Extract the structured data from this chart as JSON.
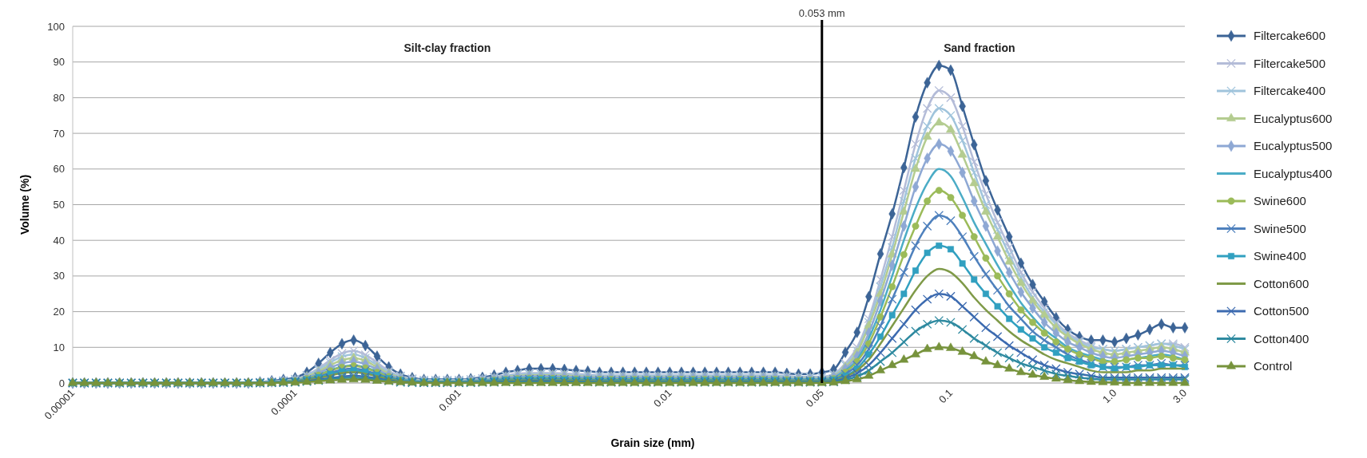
{
  "chart_data": {
    "type": "line",
    "xlabel": "Grain size (mm)",
    "ylabel": "Volume (%)",
    "categories": [
      "0.00001",
      null,
      null,
      null,
      null,
      null,
      null,
      null,
      null,
      null,
      null,
      null,
      null,
      null,
      null,
      null,
      null,
      null,
      null,
      "0.0001",
      null,
      null,
      null,
      null,
      null,
      null,
      null,
      null,
      null,
      null,
      null,
      null,
      null,
      "0.001",
      null,
      null,
      null,
      null,
      null,
      null,
      null,
      null,
      null,
      null,
      null,
      null,
      null,
      null,
      null,
      null,
      null,
      "0.01",
      null,
      null,
      null,
      null,
      null,
      null,
      null,
      null,
      null,
      null,
      null,
      null,
      "0.05",
      null,
      null,
      null,
      null,
      null,
      null,
      null,
      null,
      null,
      null,
      "0.1",
      null,
      null,
      null,
      null,
      null,
      null,
      null,
      null,
      null,
      null,
      null,
      null,
      null,
      "1.0",
      null,
      null,
      null,
      null,
      null,
      "3.0"
    ],
    "ylim": [
      0,
      100
    ],
    "yticks": [
      0,
      10,
      20,
      30,
      40,
      50,
      60,
      70,
      80,
      90,
      100
    ],
    "grid": "y",
    "legend": "right",
    "ref_lines": [
      {
        "axis": "x",
        "value": "0.05",
        "label": "0.053 mm",
        "color": "#000000"
      }
    ],
    "annotations": [
      "Silt-clay fraction",
      "Sand fraction"
    ],
    "series": [
      {
        "name": "Filtercake600",
        "color": "#3c6496",
        "marker": "diamond",
        "values": [
          0,
          0,
          0,
          0,
          0,
          0,
          0,
          0,
          0,
          0,
          0,
          0,
          0,
          0,
          0,
          0,
          0.3,
          0.6,
          1,
          1.5,
          3,
          5.5,
          8.5,
          11,
          12,
          10.5,
          7.5,
          4.5,
          2.5,
          1.5,
          1,
          1,
          1,
          1,
          1.2,
          1.6,
          2.2,
          3,
          3.5,
          4,
          4,
          4,
          3.8,
          3.5,
          3.3,
          3,
          3,
          3,
          3,
          3,
          3,
          3,
          3,
          3,
          3,
          3,
          3,
          3,
          3,
          3,
          3,
          2.7,
          2.5,
          2.5,
          3,
          3.8,
          8.6,
          14.2,
          24.2,
          36.2,
          47.4,
          60.4,
          74.6,
          84.2,
          89,
          87.7,
          77.6,
          66.8,
          56.7,
          48.5,
          41,
          33.6,
          27.6,
          22.8,
          18.3,
          15,
          13,
          12,
          12,
          11.5,
          12.5,
          13.5,
          15,
          16.5,
          15.5,
          15.5
        ]
      },
      {
        "name": "Filtercake500",
        "color": "#b4bcd8",
        "marker": "cross",
        "values": [
          0,
          0,
          0,
          0,
          0,
          0,
          0,
          0,
          0,
          0,
          0,
          0,
          0,
          0,
          0,
          0,
          0.2,
          0.4,
          0.7,
          1.1,
          2.2,
          4.1,
          6.4,
          8.3,
          9,
          7.9,
          5.7,
          3.4,
          2,
          1.2,
          0.8,
          0.8,
          0.8,
          0.8,
          1,
          1.3,
          1.7,
          2.2,
          2.6,
          2.8,
          2.8,
          2.8,
          2.7,
          2.5,
          2.4,
          2.2,
          2.2,
          2.2,
          2.2,
          2.2,
          2.2,
          2.2,
          2.2,
          2.2,
          2.2,
          2.2,
          2.2,
          2.2,
          2.2,
          2.2,
          2.2,
          2,
          1.8,
          1.8,
          1.8,
          2.5,
          5.5,
          10,
          18,
          29,
          41,
          54,
          67,
          77,
          82,
          80,
          72,
          62,
          53,
          45,
          38,
          31,
          25.5,
          21,
          17,
          14,
          12,
          10.5,
          9.5,
          9,
          9.5,
          10,
          10.5,
          11,
          11,
          10
        ]
      },
      {
        "name": "Filtercake400",
        "color": "#a0c4dc",
        "marker": "cross",
        "values": [
          0,
          0,
          0,
          0,
          0,
          0,
          0,
          0,
          0,
          0,
          0,
          0,
          0,
          0,
          0,
          0,
          0.2,
          0.4,
          0.6,
          1,
          2,
          3.7,
          5.7,
          7.4,
          8,
          7,
          5,
          3,
          1.8,
          1,
          0.7,
          0.7,
          0.7,
          0.7,
          0.9,
          1.1,
          1.5,
          2,
          2.3,
          2.5,
          2.5,
          2.5,
          2.4,
          2.2,
          2.1,
          2,
          2,
          2,
          2,
          2,
          2,
          2,
          2,
          2,
          2,
          2,
          2,
          2,
          2,
          2,
          2,
          1.8,
          1.6,
          1.6,
          1.6,
          2.2,
          5,
          9,
          17,
          27,
          38,
          51,
          63,
          72,
          77,
          75,
          68,
          59,
          50,
          43,
          36,
          29.5,
          24,
          20,
          16.5,
          13.5,
          11.5,
          10,
          9.5,
          9,
          9.5,
          10,
          10.5,
          11,
          10.5,
          9.5
        ]
      },
      {
        "name": "Eucalyptus600",
        "color": "#b4cc90",
        "marker": "triangle",
        "values": [
          0,
          0,
          0,
          0,
          0,
          0,
          0,
          0,
          0,
          0,
          0,
          0,
          0,
          0,
          0,
          0,
          0.2,
          0.3,
          0.5,
          0.9,
          1.8,
          3.2,
          5,
          6.4,
          7,
          6.2,
          4.4,
          2.7,
          1.5,
          0.9,
          0.6,
          0.6,
          0.6,
          0.6,
          0.8,
          1,
          1.3,
          1.7,
          2,
          2.2,
          2.2,
          2.2,
          2.1,
          1.9,
          1.8,
          1.7,
          1.7,
          1.7,
          1.7,
          1.7,
          1.7,
          1.7,
          1.7,
          1.7,
          1.7,
          1.7,
          1.7,
          1.7,
          1.7,
          1.7,
          1.7,
          1.5,
          1.4,
          1.4,
          1.4,
          2,
          4.5,
          8.5,
          16,
          25,
          36,
          48,
          60,
          69,
          73,
          71,
          64,
          56,
          48,
          41,
          34,
          28,
          23,
          19,
          15.5,
          13,
          11,
          9.5,
          8.5,
          8,
          8.5,
          9,
          9.5,
          10,
          9.5,
          8.5
        ]
      },
      {
        "name": "Eucalyptus500",
        "color": "#8ea8d4",
        "marker": "diamond",
        "values": [
          0,
          0,
          0,
          0,
          0,
          0,
          0,
          0,
          0,
          0,
          0,
          0,
          0,
          0,
          0,
          0,
          0.2,
          0.3,
          0.5,
          0.8,
          1.5,
          2.8,
          4.3,
          5.5,
          6,
          5.3,
          3.8,
          2.3,
          1.3,
          0.8,
          0.5,
          0.5,
          0.5,
          0.5,
          0.7,
          0.9,
          1.1,
          1.5,
          1.8,
          1.9,
          1.9,
          1.9,
          1.8,
          1.7,
          1.6,
          1.5,
          1.5,
          1.5,
          1.5,
          1.5,
          1.5,
          1.5,
          1.5,
          1.5,
          1.5,
          1.5,
          1.5,
          1.5,
          1.5,
          1.5,
          1.5,
          1.3,
          1.2,
          1.2,
          1.2,
          1.8,
          4,
          7.5,
          14,
          23,
          33,
          44,
          55,
          63,
          67,
          65,
          59,
          51,
          44,
          37,
          31,
          25.5,
          21,
          17,
          14,
          11.5,
          10,
          8.5,
          7.5,
          7,
          7.5,
          8,
          8.5,
          9,
          8.5,
          7.5
        ]
      },
      {
        "name": "Eucalyptus400",
        "color": "#4bacc6",
        "marker": "none",
        "values": [
          0,
          0,
          0,
          0,
          0,
          0,
          0,
          0,
          0,
          0,
          0,
          0,
          0,
          0,
          0,
          0,
          0.1,
          0.2,
          0.4,
          0.7,
          1.3,
          2.3,
          3.6,
          4.6,
          5,
          4.4,
          3.2,
          1.9,
          1,
          0.6,
          0.4,
          0.4,
          0.4,
          0.4,
          0.5,
          0.7,
          0.9,
          1.2,
          1.4,
          1.5,
          1.5,
          1.5,
          1.4,
          1.3,
          1.2,
          1.2,
          1.2,
          1.2,
          1.2,
          1.2,
          1.2,
          1.2,
          1.2,
          1.2,
          1.2,
          1.2,
          1.2,
          1.2,
          1.2,
          1.2,
          1.2,
          1,
          1,
          1,
          1,
          1.5,
          3.5,
          6.5,
          12.5,
          20.5,
          30,
          40,
          49,
          56,
          60,
          58,
          52,
          45,
          39,
          33,
          27.5,
          22.5,
          18.5,
          15,
          12.5,
          10,
          8.5,
          7.5,
          6.5,
          6,
          6.5,
          7,
          7.5,
          8,
          7.5,
          6.5
        ]
      },
      {
        "name": "Swine600",
        "color": "#9bbb59",
        "marker": "circle",
        "values": [
          0,
          0,
          0,
          0,
          0,
          0,
          0,
          0,
          0,
          0,
          0,
          0,
          0,
          0,
          0,
          0,
          0.1,
          0.2,
          0.4,
          0.6,
          1.2,
          2.2,
          3.4,
          4.4,
          4.8,
          4.2,
          3,
          1.8,
          0.9,
          0.5,
          0.3,
          0.3,
          0.3,
          0.3,
          0.4,
          0.6,
          0.8,
          1,
          1.2,
          1.3,
          1.3,
          1.3,
          1.2,
          1.1,
          1,
          1,
          1,
          1,
          1,
          1,
          1,
          1,
          1,
          1,
          1,
          1,
          1,
          1,
          1,
          1,
          1,
          0.9,
          0.8,
          0.8,
          0.8,
          1.2,
          3,
          6,
          11,
          18.5,
          27,
          36,
          44,
          51,
          54,
          52,
          47,
          41,
          35,
          30,
          25,
          20.5,
          17,
          14,
          11.5,
          9.5,
          8,
          7,
          6,
          6,
          6.5,
          7,
          7,
          7.5,
          7,
          6.5
        ]
      },
      {
        "name": "Swine500",
        "color": "#4f81bd",
        "marker": "cross",
        "values": [
          0,
          0,
          0,
          0,
          0,
          0,
          0,
          0,
          0,
          0,
          0,
          0,
          0,
          0,
          0,
          0,
          0.1,
          0.2,
          0.3,
          0.5,
          1,
          1.8,
          2.8,
          3.7,
          4,
          3.5,
          2.5,
          1.5,
          0.8,
          0.5,
          0.3,
          0.3,
          0.3,
          0.3,
          0.4,
          0.5,
          0.7,
          0.9,
          1,
          1.1,
          1.1,
          1.1,
          1,
          0.9,
          0.9,
          0.8,
          0.8,
          0.8,
          0.8,
          0.8,
          0.8,
          0.8,
          0.8,
          0.8,
          0.8,
          0.8,
          0.8,
          0.8,
          0.8,
          0.8,
          0.8,
          0.7,
          0.7,
          0.7,
          0.7,
          1,
          2.5,
          5,
          9.5,
          16,
          23.5,
          31,
          38.5,
          44,
          47,
          45.5,
          41,
          35.5,
          30.5,
          26,
          21.5,
          18,
          14.5,
          12,
          10,
          8,
          6.5,
          5.5,
          4.5,
          4.5,
          4.5,
          5,
          5,
          5.5,
          5,
          5
        ]
      },
      {
        "name": "Swine400",
        "color": "#31a0c0",
        "marker": "square",
        "values": [
          0,
          0,
          0,
          0,
          0,
          0,
          0,
          0,
          0,
          0,
          0,
          0,
          0,
          0,
          0,
          0,
          0.1,
          0.2,
          0.3,
          0.5,
          0.9,
          1.6,
          2.5,
          3.2,
          3.5,
          3.1,
          2.2,
          1.3,
          0.7,
          0.4,
          0.3,
          0.3,
          0.3,
          0.3,
          0.3,
          0.4,
          0.6,
          0.8,
          0.9,
          1,
          1,
          1,
          0.9,
          0.8,
          0.8,
          0.7,
          0.7,
          0.7,
          0.7,
          0.7,
          0.7,
          0.7,
          0.7,
          0.7,
          0.7,
          0.7,
          0.7,
          0.7,
          0.7,
          0.7,
          0.7,
          0.6,
          0.6,
          0.6,
          0.6,
          0.9,
          2,
          4,
          8,
          13,
          19,
          25,
          31.5,
          36.5,
          38.5,
          37.5,
          33.5,
          29,
          25,
          21.5,
          18,
          15,
          12.5,
          10,
          8.5,
          7,
          6,
          5,
          4.5,
          4,
          4.5,
          4.5,
          5,
          5,
          5,
          4.5
        ]
      },
      {
        "name": "Cotton600",
        "color": "#7f9a48",
        "marker": "none",
        "values": [
          0,
          0,
          0,
          0,
          0,
          0,
          0,
          0,
          0,
          0,
          0,
          0,
          0,
          0,
          0,
          0,
          0.1,
          0.1,
          0.2,
          0.4,
          0.8,
          1.4,
          2.1,
          2.8,
          3,
          2.6,
          1.9,
          1.1,
          0.5,
          0.3,
          0.2,
          0.2,
          0.2,
          0.2,
          0.3,
          0.3,
          0.4,
          0.6,
          0.7,
          0.7,
          0.7,
          0.7,
          0.7,
          0.6,
          0.6,
          0.5,
          0.5,
          0.5,
          0.5,
          0.5,
          0.5,
          0.5,
          0.5,
          0.5,
          0.5,
          0.5,
          0.5,
          0.5,
          0.5,
          0.5,
          0.5,
          0.5,
          0.5,
          0.5,
          0.5,
          0.7,
          1.7,
          3.5,
          6.5,
          11,
          16,
          21,
          26,
          30,
          32,
          31,
          28,
          24,
          20.5,
          17.5,
          14.5,
          12,
          10,
          8,
          6.5,
          5.5,
          4.5,
          3.5,
          3,
          3,
          3,
          3.5,
          3.5,
          4,
          4,
          4
        ]
      },
      {
        "name": "Cotton500",
        "color": "#3d6bb0",
        "marker": "cross",
        "values": [
          0,
          0,
          0,
          0,
          0,
          0,
          0,
          0,
          0,
          0,
          0,
          0,
          0,
          0,
          0,
          0,
          0,
          0.1,
          0.2,
          0.3,
          0.5,
          0.9,
          1.4,
          1.8,
          2,
          1.8,
          1.3,
          0.8,
          0.3,
          0.2,
          0.1,
          0.1,
          0.1,
          0.1,
          0.2,
          0.2,
          0.3,
          0.4,
          0.4,
          0.5,
          0.5,
          0.5,
          0.4,
          0.4,
          0.4,
          0.3,
          0.3,
          0.3,
          0.3,
          0.3,
          0.3,
          0.3,
          0.3,
          0.3,
          0.3,
          0.3,
          0.3,
          0.3,
          0.3,
          0.3,
          0.3,
          0.3,
          0.3,
          0.3,
          0.3,
          0.5,
          1.3,
          2.7,
          5,
          8.5,
          12.5,
          16.5,
          20.5,
          23.5,
          25,
          24.3,
          21.5,
          18.5,
          15.5,
          13,
          10.5,
          8.5,
          6.5,
          5,
          4,
          3,
          2.5,
          2,
          1.5,
          1.5,
          1.5,
          1.5,
          1.5,
          1.5,
          1.5,
          1.5
        ]
      },
      {
        "name": "Cotton400",
        "color": "#2f8aa0",
        "marker": "cross",
        "values": [
          0,
          0,
          0,
          0,
          0,
          0,
          0,
          0,
          0,
          0,
          0,
          0,
          0,
          0,
          0,
          0,
          0,
          0.1,
          0.1,
          0.2,
          0.4,
          0.7,
          1.1,
          1.4,
          1.5,
          1.3,
          1,
          0.6,
          0.2,
          0.1,
          0.1,
          0.1,
          0.1,
          0.1,
          0.1,
          0.2,
          0.2,
          0.3,
          0.3,
          0.3,
          0.3,
          0.3,
          0.3,
          0.3,
          0.3,
          0.2,
          0.2,
          0.2,
          0.2,
          0.2,
          0.2,
          0.2,
          0.2,
          0.2,
          0.2,
          0.2,
          0.2,
          0.2,
          0.2,
          0.2,
          0.2,
          0.2,
          0.2,
          0.2,
          0.2,
          0.3,
          0.9,
          1.8,
          3.5,
          6,
          8.5,
          11.5,
          14.5,
          16.5,
          17.5,
          17,
          15,
          12.5,
          10.5,
          8.5,
          7,
          5.5,
          4.5,
          3.5,
          2.5,
          2,
          1.5,
          1.2,
          1,
          1,
          1,
          1,
          1,
          1,
          1,
          1
        ]
      },
      {
        "name": "Control",
        "color": "#77933c",
        "marker": "triangle",
        "values": [
          0,
          0,
          0,
          0,
          0,
          0,
          0,
          0,
          0,
          0,
          0,
          0,
          0,
          0,
          0,
          0,
          0,
          0,
          0.1,
          0.1,
          0.3,
          0.5,
          0.7,
          0.9,
          1,
          0.9,
          0.6,
          0.4,
          0.2,
          0.1,
          0,
          0,
          0,
          0,
          0,
          0,
          0,
          0,
          0,
          0,
          0,
          0,
          0,
          0,
          0,
          0,
          0,
          0,
          0,
          0,
          0,
          0,
          0,
          0,
          0,
          0,
          0,
          0,
          0,
          0,
          0,
          0,
          0,
          0,
          0,
          0.1,
          0.5,
          1,
          2,
          3.5,
          5,
          6.5,
          8,
          9.5,
          10,
          9.8,
          8.7,
          7.5,
          6,
          5,
          4,
          3,
          2.3,
          1.7,
          1.2,
          0.8,
          0.5,
          0.3,
          0.2,
          0.1,
          0,
          0,
          0,
          0,
          0,
          0
        ]
      }
    ]
  }
}
